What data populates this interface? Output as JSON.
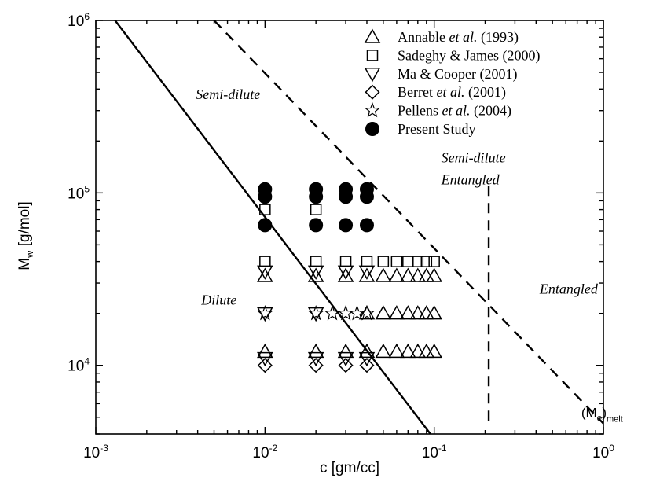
{
  "chart_data": {
    "type": "scatter",
    "x_scale": "log",
    "y_scale": "log",
    "xlim": [
      0.001,
      1
    ],
    "ylim": [
      4000,
      1000000
    ],
    "xlabel": "c [gm/cc]",
    "ylabel": {
      "main": "M",
      "sub": "w",
      "unit": " [g/mol]"
    },
    "x_ticks": [
      {
        "value": 0.001,
        "base": "10",
        "exp": "-3"
      },
      {
        "value": 0.01,
        "base": "10",
        "exp": "-2"
      },
      {
        "value": 0.1,
        "base": "10",
        "exp": "-1"
      },
      {
        "value": 1,
        "base": "10",
        "exp": "0"
      }
    ],
    "y_ticks": [
      {
        "value": 10000,
        "base": "10",
        "exp": "4"
      },
      {
        "value": 100000,
        "base": "10",
        "exp": "5"
      },
      {
        "value": 1000000,
        "base": "10",
        "exp": "6"
      }
    ],
    "grid": false,
    "legend_position": "top-right",
    "series": [
      {
        "name": "Annable et al. (1993)",
        "name_parts": [
          {
            "t": "Annable "
          },
          {
            "t": "et al.",
            "i": true
          },
          {
            "t": " (1993)"
          }
        ],
        "marker": "triangle-up",
        "points": [
          [
            0.01,
            33000
          ],
          [
            0.02,
            33000
          ],
          [
            0.03,
            33000
          ],
          [
            0.04,
            33000
          ],
          [
            0.05,
            33000
          ],
          [
            0.06,
            33000
          ],
          [
            0.07,
            33000
          ],
          [
            0.08,
            33000
          ],
          [
            0.09,
            33000
          ],
          [
            0.1,
            33000
          ],
          [
            0.04,
            20000
          ],
          [
            0.05,
            20000
          ],
          [
            0.06,
            20000
          ],
          [
            0.07,
            20000
          ],
          [
            0.08,
            20000
          ],
          [
            0.09,
            20000
          ],
          [
            0.1,
            20000
          ],
          [
            0.01,
            12000
          ],
          [
            0.02,
            12000
          ],
          [
            0.03,
            12000
          ],
          [
            0.04,
            12000
          ],
          [
            0.05,
            12000
          ],
          [
            0.06,
            12000
          ],
          [
            0.07,
            12000
          ],
          [
            0.08,
            12000
          ],
          [
            0.09,
            12000
          ],
          [
            0.1,
            12000
          ]
        ]
      },
      {
        "name": "Sadeghy & James (2000)",
        "name_parts": [
          {
            "t": "Sadeghy & James (2000)"
          }
        ],
        "marker": "square",
        "points": [
          [
            0.01,
            80000
          ],
          [
            0.02,
            80000
          ],
          [
            0.01,
            40000
          ],
          [
            0.02,
            40000
          ],
          [
            0.03,
            40000
          ],
          [
            0.04,
            40000
          ],
          [
            0.05,
            40000
          ],
          [
            0.06,
            40000
          ],
          [
            0.07,
            40000
          ],
          [
            0.08,
            40000
          ],
          [
            0.09,
            40000
          ],
          [
            0.1,
            40000
          ]
        ]
      },
      {
        "name": "Ma & Cooper (2001)",
        "name_parts": [
          {
            "t": "Ma & Cooper (2001)"
          }
        ],
        "marker": "triangle-down",
        "points": [
          [
            0.01,
            35000
          ],
          [
            0.02,
            35000
          ],
          [
            0.03,
            35000
          ],
          [
            0.04,
            35000
          ],
          [
            0.01,
            20000
          ],
          [
            0.02,
            20000
          ],
          [
            0.01,
            11000
          ],
          [
            0.02,
            11000
          ],
          [
            0.03,
            11000
          ],
          [
            0.04,
            11000
          ]
        ]
      },
      {
        "name": "Berret et al. (2001)",
        "name_parts": [
          {
            "t": "Berret "
          },
          {
            "t": "et al.",
            "i": true
          },
          {
            "t": " (2001)"
          }
        ],
        "marker": "diamond",
        "points": [
          [
            0.01,
            10000
          ],
          [
            0.02,
            10000
          ],
          [
            0.03,
            10000
          ],
          [
            0.04,
            10000
          ]
        ]
      },
      {
        "name": "Pellens et al. (2004)",
        "name_parts": [
          {
            "t": "Pellens "
          },
          {
            "t": "et al.",
            "i": true
          },
          {
            "t": " (2004)"
          }
        ],
        "marker": "star",
        "points": [
          [
            0.01,
            20000
          ],
          [
            0.02,
            20000
          ],
          [
            0.025,
            20000
          ],
          [
            0.03,
            20000
          ],
          [
            0.035,
            20000
          ],
          [
            0.04,
            20000
          ]
        ]
      },
      {
        "name": "Present Study",
        "name_parts": [
          {
            "t": "Present Study"
          }
        ],
        "marker": "circle-filled",
        "points": [
          [
            0.01,
            105000
          ],
          [
            0.02,
            105000
          ],
          [
            0.03,
            105000
          ],
          [
            0.04,
            105000
          ],
          [
            0.01,
            95000
          ],
          [
            0.02,
            95000
          ],
          [
            0.03,
            95000
          ],
          [
            0.04,
            95000
          ],
          [
            0.01,
            65000
          ],
          [
            0.02,
            65000
          ],
          [
            0.03,
            65000
          ],
          [
            0.04,
            65000
          ]
        ]
      }
    ],
    "lines": [
      {
        "name": "overlap-line",
        "style": "solid",
        "points": [
          [
            0.0013,
            1000000
          ],
          [
            0.095,
            4000
          ]
        ]
      },
      {
        "name": "entanglement-line",
        "style": "dashed",
        "points": [
          [
            0.005,
            1000000
          ],
          [
            1,
            4600
          ]
        ]
      },
      {
        "name": "melt-line",
        "style": "dashed",
        "points": [
          [
            0.21,
            110000
          ],
          [
            0.21,
            4700
          ]
        ]
      }
    ],
    "annotations": [
      {
        "name": "label-semi-dilute",
        "parts": [
          {
            "t": "Semi-dilute"
          }
        ],
        "x": 0.0039,
        "y": 350000
      },
      {
        "name": "label-semi-dilute-entangled-1",
        "parts": [
          {
            "t": "Semi-dilute"
          }
        ],
        "x": 0.11,
        "y": 150000
      },
      {
        "name": "label-semi-dilute-entangled-2",
        "parts": [
          {
            "t": "Entangled"
          }
        ],
        "x": 0.11,
        "y": 112000
      },
      {
        "name": "label-dilute",
        "parts": [
          {
            "t": "Dilute"
          }
        ],
        "x": 0.0042,
        "y": 22500
      },
      {
        "name": "label-entangled",
        "parts": [
          {
            "t": "Entangled"
          }
        ],
        "x": 0.42,
        "y": 26000
      }
    ],
    "melt_label": {
      "main": "(M",
      "sub": "e",
      "close": ")",
      "sub2": "melt",
      "x": 0.74,
      "y": 5000
    }
  }
}
